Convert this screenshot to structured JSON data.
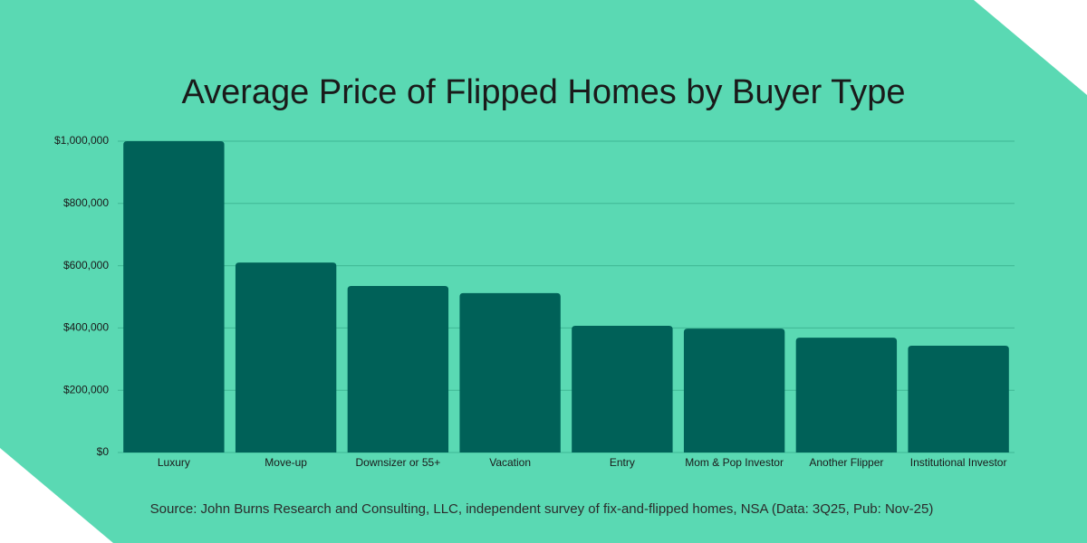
{
  "chart_data": {
    "type": "bar",
    "title": "Average Price of Flipped Homes by Buyer Type",
    "categories": [
      "Luxury",
      "Move-up",
      "Downsizer or 55+",
      "Vacation",
      "Entry",
      "Mom & Pop Investor",
      "Another Flipper",
      "Institutional Investor"
    ],
    "values": [
      1000000,
      610000,
      535000,
      512000,
      407000,
      398000,
      369000,
      343000
    ],
    "color": "#006158",
    "ylim": [
      0,
      1000000
    ],
    "yticks": [
      {
        "value": 0,
        "label": "$0"
      },
      {
        "value": 200000,
        "label": "$200,000"
      },
      {
        "value": 400000,
        "label": "$400,000"
      },
      {
        "value": 600000,
        "label": "$600,000"
      },
      {
        "value": 800000,
        "label": "$800,000"
      },
      {
        "value": 1000000,
        "label": "$1,000,000"
      }
    ],
    "grid": true,
    "source": "Source: John Burns Research and Consulting, LLC, independent survey of fix-and-flipped homes, NSA (Data: 3Q25, Pub: Nov-25)"
  }
}
